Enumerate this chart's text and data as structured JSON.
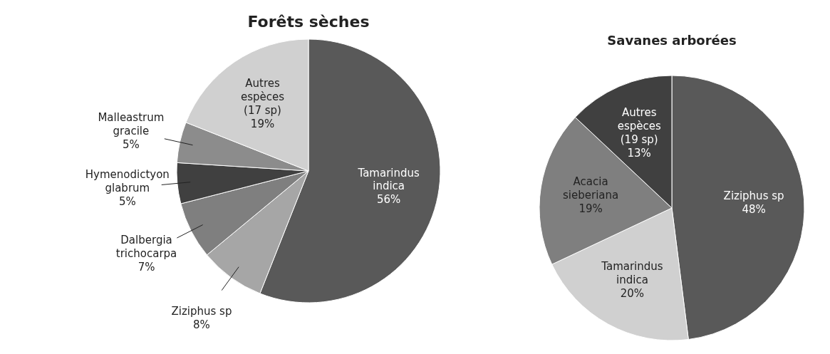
{
  "chart_data": [
    {
      "type": "pie",
      "title": "Forêts sèches",
      "categories": [
        "Tamarindus indica",
        "Ziziphus sp",
        "Dalbergia trichocarpa",
        "Hymenodictyon glabrum",
        "Malleastrum gracile",
        "Autres espèces (17 sp)"
      ],
      "values": [
        56,
        8,
        7,
        5,
        5,
        19
      ],
      "value_labels": [
        "56%",
        "8%",
        "7%",
        "5%",
        "5%",
        "19%"
      ],
      "colors": [
        "#595959",
        "#a6a6a6",
        "#7f7f7f",
        "#404040",
        "#8c8c8c",
        "#d0d0d0"
      ]
    },
    {
      "type": "pie",
      "title": "Savanes arborées",
      "categories": [
        "Ziziphus sp",
        "Tamarindus indica",
        "Acacia sieberiana",
        "Autres espèces (19 sp)"
      ],
      "values": [
        48,
        20,
        19,
        13
      ],
      "value_labels": [
        "48%",
        "20%",
        "19%",
        "13%"
      ],
      "colors": [
        "#595959",
        "#d0d0d0",
        "#7f7f7f",
        "#404040"
      ]
    }
  ]
}
